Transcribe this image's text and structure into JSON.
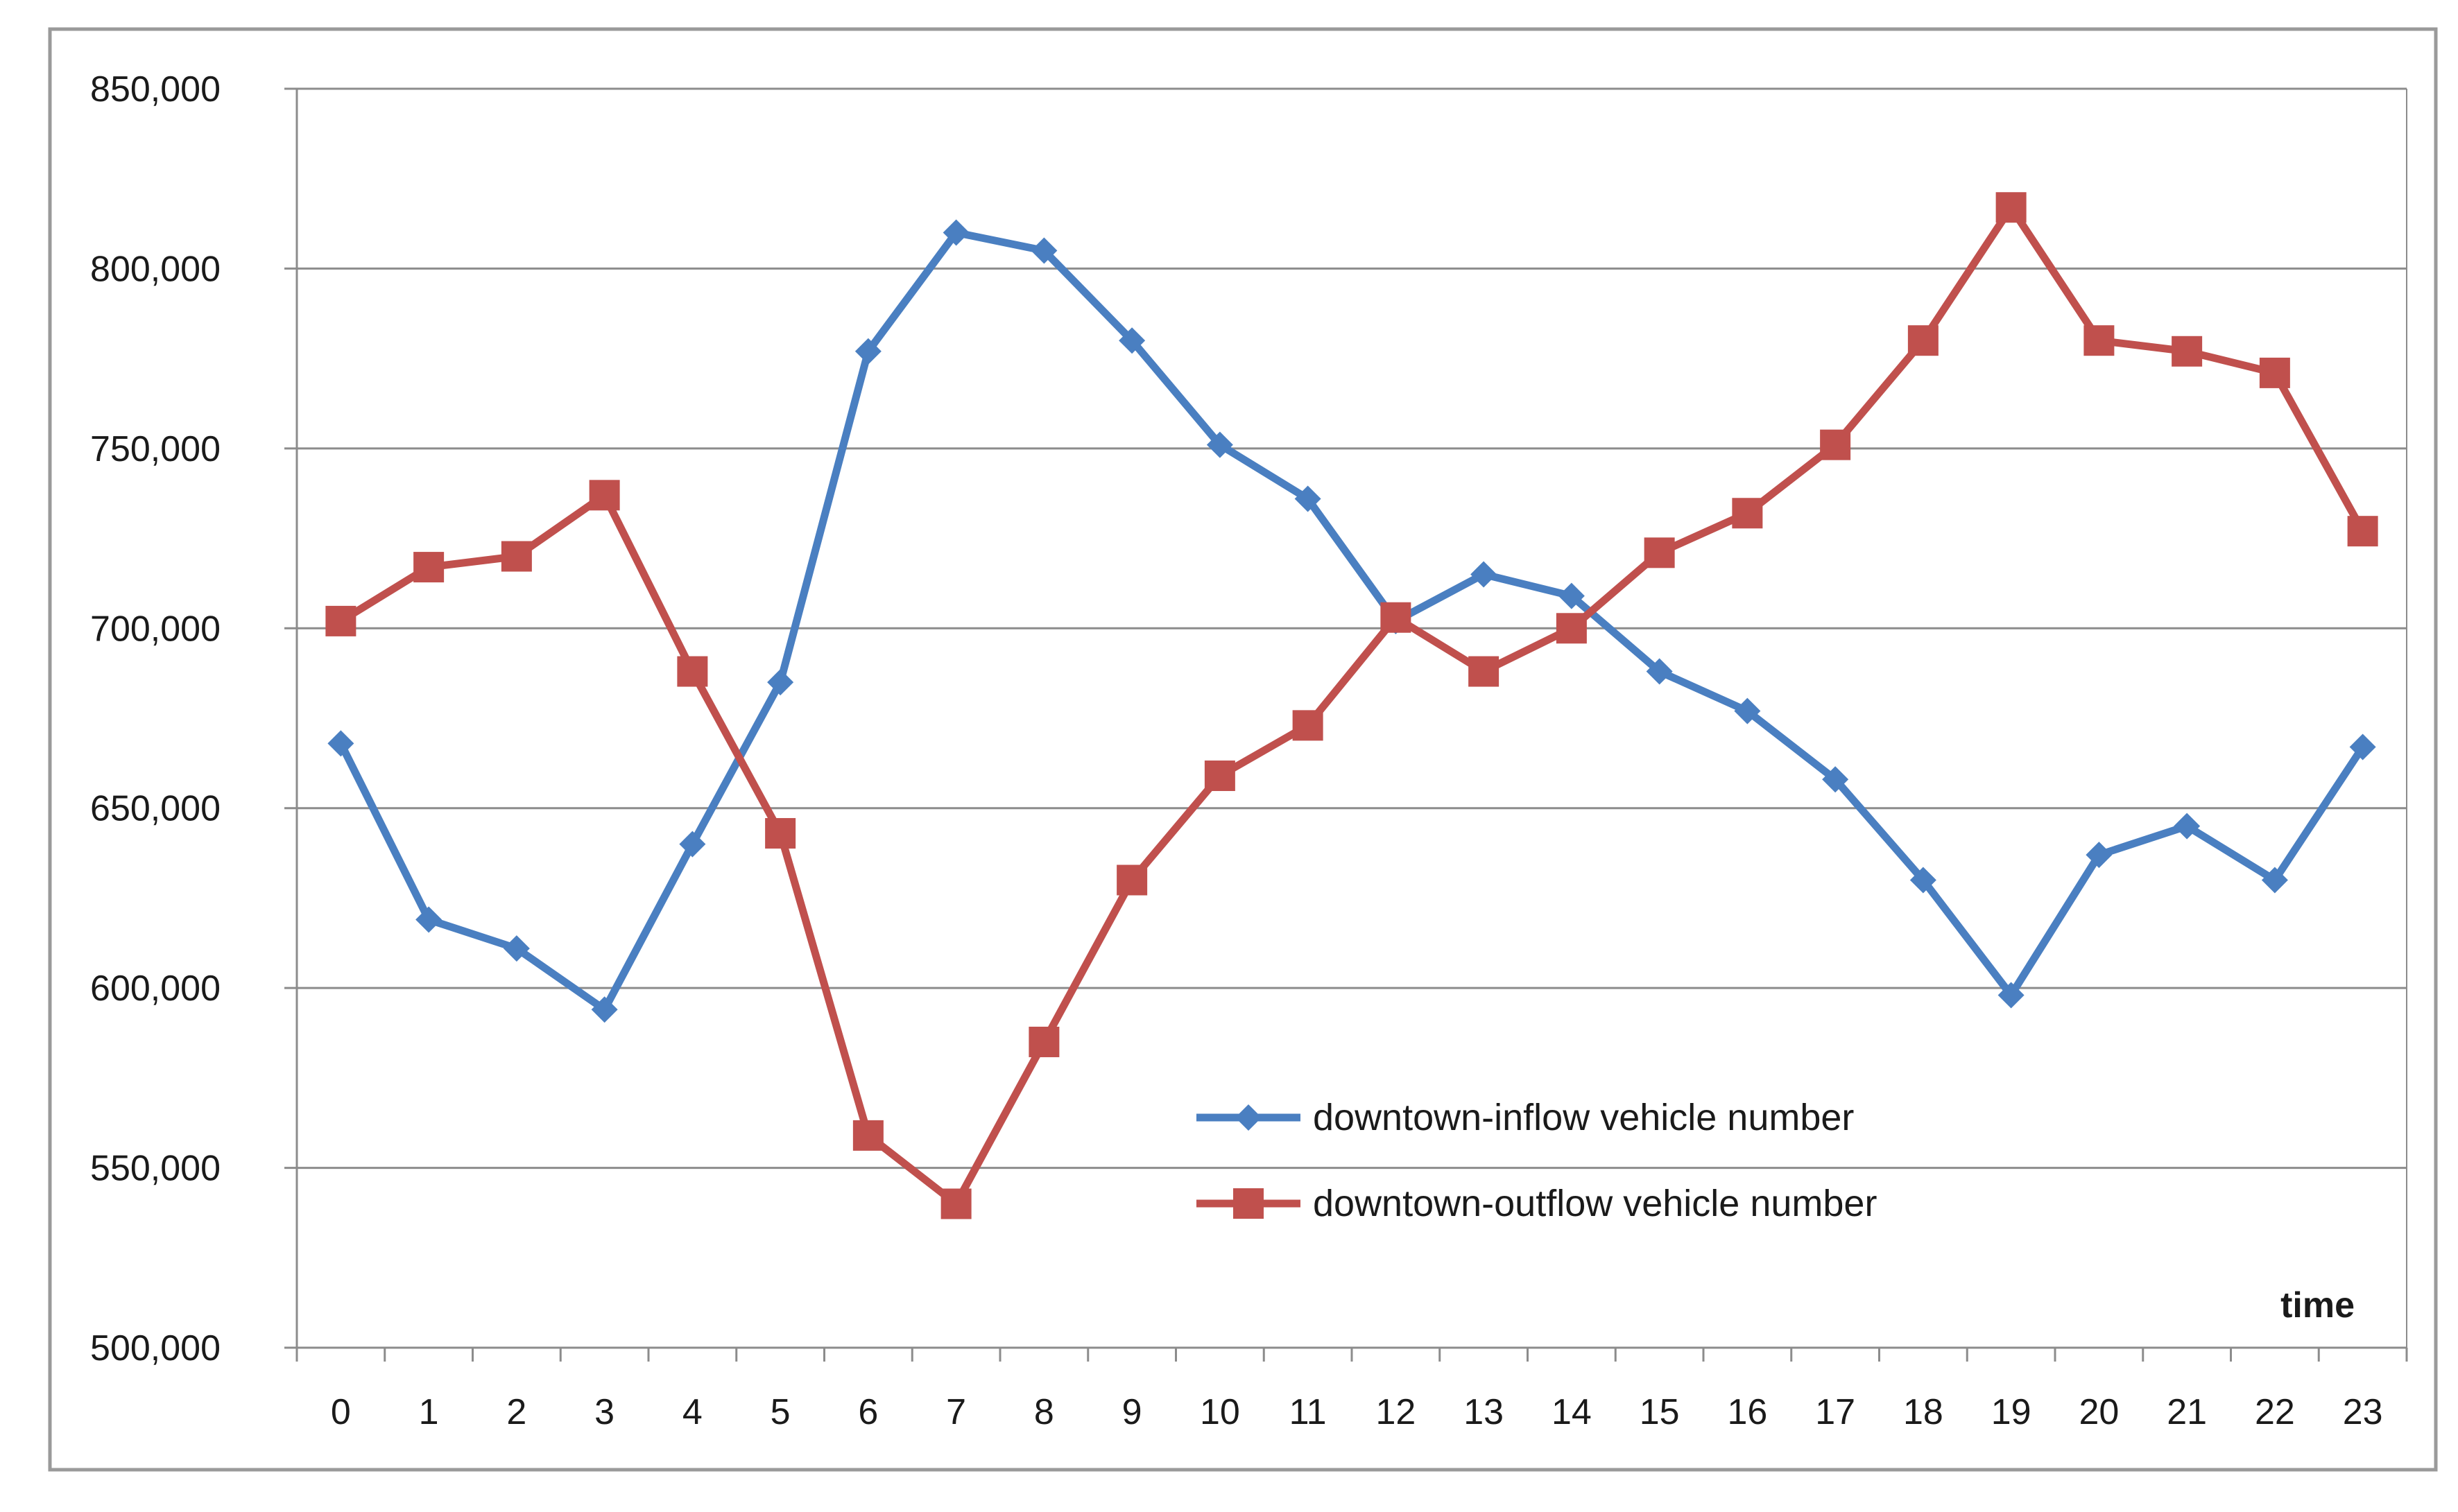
{
  "colors": {
    "inflow": "#4a7fc1",
    "outflow": "#c0504d",
    "grid": "#8c8c8c",
    "axis": "#8c8c8c",
    "frame": "#9a9a9a"
  },
  "chart_data": {
    "type": "line",
    "title": "",
    "xlabel": "time",
    "ylabel": "",
    "categories": [
      "0",
      "1",
      "2",
      "3",
      "4",
      "5",
      "6",
      "7",
      "8",
      "9",
      "10",
      "11",
      "12",
      "13",
      "14",
      "15",
      "16",
      "17",
      "18",
      "19",
      "20",
      "21",
      "22",
      "23"
    ],
    "ylim": [
      500000,
      850000
    ],
    "yticks": [
      500000,
      550000,
      600000,
      650000,
      700000,
      750000,
      800000,
      850000
    ],
    "ytick_labels": [
      "500,000",
      "550,000",
      "600,000",
      "650,000",
      "700,000",
      "750,000",
      "800,000",
      "850,000"
    ],
    "grid": true,
    "legend_position": "bottom-right",
    "series": [
      {
        "name": "downtown-inflow vehicle number",
        "color_key": "inflow",
        "marker": "diamond",
        "values": [
          668000,
          619000,
          611000,
          594000,
          640000,
          685000,
          777000,
          810000,
          805000,
          780000,
          751000,
          736000,
          702000,
          715000,
          709000,
          688000,
          677000,
          658000,
          630000,
          598000,
          637000,
          645000,
          630000,
          667000
        ]
      },
      {
        "name": "downtown-outflow vehicle number",
        "color_key": "outflow",
        "marker": "square",
        "values": [
          702000,
          717000,
          720000,
          737000,
          688000,
          643000,
          559000,
          540000,
          585000,
          630000,
          659000,
          673000,
          703000,
          688000,
          700000,
          721000,
          732000,
          751000,
          780000,
          817000,
          780000,
          777000,
          771000,
          727000
        ]
      }
    ]
  }
}
